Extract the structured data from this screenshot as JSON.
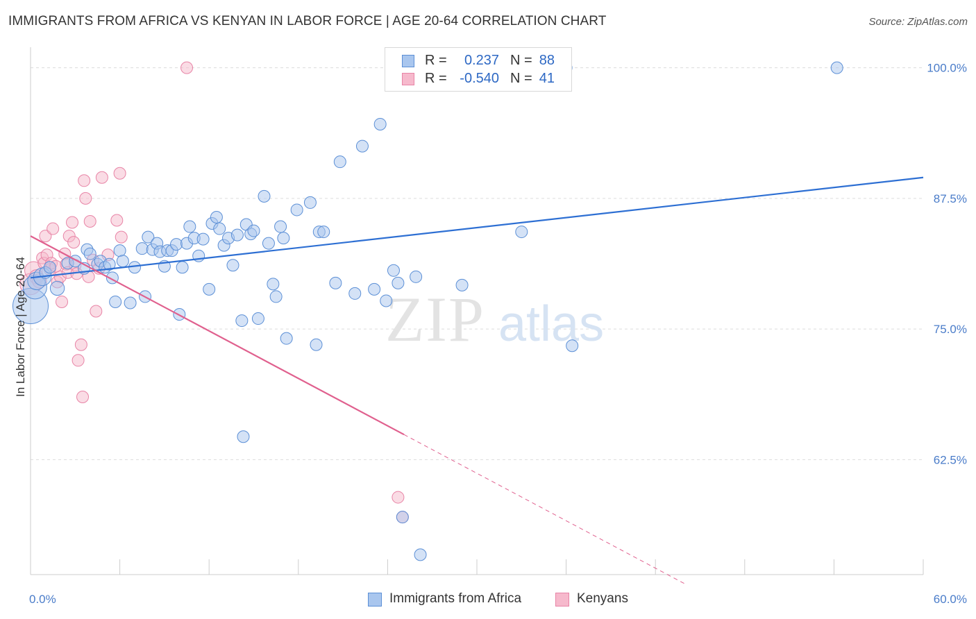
{
  "title": "IMMIGRANTS FROM AFRICA VS KENYAN IN LABOR FORCE | AGE 20-64 CORRELATION CHART",
  "source": "Source: ZipAtlas.com",
  "watermark": {
    "zip": "ZIP",
    "atlas": "atlas"
  },
  "legend": {
    "rows": [
      {
        "r_label": "R =",
        "r_value": "0.237",
        "n_label": "N =",
        "n_value": "88",
        "color": "#a9c6ee",
        "stroke": "#5b8fd6"
      },
      {
        "r_label": "R =",
        "r_value": "-0.540",
        "n_label": "N =",
        "n_value": "41",
        "color": "#f6b9cc",
        "stroke": "#e884a6"
      }
    ]
  },
  "bottom_legend": {
    "africa": "Immigrants from Africa",
    "kenyans": "Kenyans"
  },
  "chart_data": {
    "type": "scatter",
    "title": "IMMIGRANTS FROM AFRICA VS KENYAN IN LABOR FORCE | AGE 20-64 CORRELATION CHART",
    "xlabel": "",
    "ylabel": "In Labor Force | Age 20-64",
    "xlim": [
      0,
      60
    ],
    "ylim": [
      51.5,
      102.5
    ],
    "x_tick_labels": [
      {
        "value": 0,
        "label": "0.0%"
      },
      {
        "value": 60,
        "label": "60.0%"
      }
    ],
    "y_ticks": [
      {
        "value": 100,
        "label": "100.0%"
      },
      {
        "value": 87.5,
        "label": "87.5%"
      },
      {
        "value": 75,
        "label": "75.0%"
      },
      {
        "value": 62.5,
        "label": "62.5%"
      }
    ],
    "grid": true,
    "legend_position": "top-center",
    "series": [
      {
        "name": "Immigrants from Africa",
        "color": "#a9c6ee",
        "stroke": "#5b8fd6",
        "trend": {
          "x": [
            0,
            60
          ],
          "y": [
            79.9,
            89.5
          ],
          "color": "#2d6fd3"
        },
        "points": [
          [
            0.0,
            77.2,
            3
          ],
          [
            0.3,
            79.0,
            2
          ],
          [
            0.4,
            79.6,
            1.5
          ],
          [
            0.8,
            80.0,
            1.5
          ],
          [
            1.0,
            80.4,
            1
          ],
          [
            1.3,
            80.9,
            1
          ],
          [
            1.8,
            78.9,
            1.2
          ],
          [
            2.5,
            81.3,
            1
          ],
          [
            3.0,
            81.5,
            1
          ],
          [
            3.6,
            80.8,
            1
          ],
          [
            3.8,
            82.6,
            1
          ],
          [
            4.0,
            82.2,
            1
          ],
          [
            4.5,
            81.2,
            1
          ],
          [
            4.7,
            81.5,
            1
          ],
          [
            5.0,
            80.9,
            1
          ],
          [
            5.3,
            81.2,
            1
          ],
          [
            5.5,
            79.9,
            1
          ],
          [
            5.7,
            77.6,
            1
          ],
          [
            6.0,
            82.5,
            1
          ],
          [
            6.2,
            81.5,
            1
          ],
          [
            6.7,
            77.5,
            1
          ],
          [
            7.0,
            80.9,
            1
          ],
          [
            7.5,
            82.7,
            1
          ],
          [
            7.7,
            78.1,
            1
          ],
          [
            7.9,
            83.8,
            1
          ],
          [
            8.2,
            82.6,
            1
          ],
          [
            8.5,
            83.2,
            1
          ],
          [
            8.7,
            82.4,
            1
          ],
          [
            9.0,
            81.0,
            1
          ],
          [
            9.2,
            82.5,
            1
          ],
          [
            9.5,
            82.5,
            1
          ],
          [
            9.8,
            83.1,
            1
          ],
          [
            10.0,
            76.4,
            1
          ],
          [
            10.2,
            80.9,
            1
          ],
          [
            10.5,
            83.2,
            1
          ],
          [
            10.7,
            84.8,
            1
          ],
          [
            11.0,
            83.7,
            1
          ],
          [
            11.3,
            82.0,
            1
          ],
          [
            11.6,
            83.6,
            1
          ],
          [
            12.0,
            78.8,
            1
          ],
          [
            12.2,
            85.1,
            1
          ],
          [
            12.5,
            85.7,
            1
          ],
          [
            12.7,
            84.6,
            1
          ],
          [
            13.0,
            83.0,
            1
          ],
          [
            13.3,
            83.7,
            1
          ],
          [
            13.6,
            81.1,
            1
          ],
          [
            13.9,
            84.0,
            1
          ],
          [
            14.2,
            75.8,
            1
          ],
          [
            14.5,
            85.0,
            1
          ],
          [
            14.8,
            84.1,
            1
          ],
          [
            15.0,
            84.4,
            1
          ],
          [
            15.3,
            76.0,
            1
          ],
          [
            15.7,
            87.7,
            1
          ],
          [
            16.0,
            83.2,
            1
          ],
          [
            16.3,
            79.3,
            1
          ],
          [
            16.5,
            78.1,
            1
          ],
          [
            16.8,
            84.8,
            1
          ],
          [
            17.0,
            83.7,
            1
          ],
          [
            17.2,
            74.1,
            1
          ],
          [
            17.9,
            86.4,
            1
          ],
          [
            18.8,
            87.1,
            1
          ],
          [
            19.2,
            73.5,
            1
          ],
          [
            19.4,
            84.3,
            1
          ],
          [
            19.7,
            84.3,
            1
          ],
          [
            20.5,
            79.4,
            1
          ],
          [
            20.8,
            91.0,
            1
          ],
          [
            21.8,
            78.4,
            1
          ],
          [
            22.3,
            92.5,
            1
          ],
          [
            23.1,
            78.8,
            1
          ],
          [
            23.5,
            94.6,
            1
          ],
          [
            23.9,
            77.7,
            1
          ],
          [
            24.4,
            80.6,
            1
          ],
          [
            24.7,
            79.4,
            1
          ],
          [
            25.0,
            57.0,
            1
          ],
          [
            25.9,
            80.0,
            1
          ],
          [
            26.2,
            53.4,
            1
          ],
          [
            29.0,
            79.2,
            1
          ],
          [
            33.0,
            84.3,
            1
          ],
          [
            36.0,
            100.0,
            1
          ],
          [
            36.4,
            73.4,
            1
          ],
          [
            54.2,
            100.0,
            1
          ],
          [
            14.3,
            64.7,
            1
          ]
        ]
      },
      {
        "name": "Kenyans",
        "color": "#f6b9cc",
        "stroke": "#e884a6",
        "trend": {
          "x": [
            0,
            25.1
          ],
          "y": [
            83.9,
            64.9
          ],
          "color": "#e0608e",
          "dashed_to": {
            "x": 44,
            "y": 50.6
          }
        },
        "points": [
          [
            0.0,
            79.3,
            1.8
          ],
          [
            0.2,
            80.6,
            1.5
          ],
          [
            0.4,
            80.0,
            1.2
          ],
          [
            0.6,
            79.6,
            1.2
          ],
          [
            0.8,
            81.8,
            1
          ],
          [
            0.9,
            81.3,
            1
          ],
          [
            1.0,
            83.9,
            1
          ],
          [
            1.1,
            82.1,
            1
          ],
          [
            1.3,
            80.7,
            1
          ],
          [
            1.4,
            81.3,
            1
          ],
          [
            1.5,
            84.6,
            1
          ],
          [
            1.7,
            81.0,
            1
          ],
          [
            1.8,
            79.5,
            1
          ],
          [
            2.0,
            80.0,
            1
          ],
          [
            2.1,
            77.6,
            1
          ],
          [
            2.3,
            82.2,
            1
          ],
          [
            2.4,
            81.2,
            1
          ],
          [
            2.5,
            80.4,
            1
          ],
          [
            2.6,
            83.9,
            1
          ],
          [
            2.8,
            85.2,
            1
          ],
          [
            2.9,
            83.3,
            1
          ],
          [
            3.0,
            81.1,
            1
          ],
          [
            3.1,
            80.3,
            1
          ],
          [
            3.2,
            72.0,
            1
          ],
          [
            3.4,
            73.5,
            1
          ],
          [
            3.5,
            68.5,
            1
          ],
          [
            3.6,
            89.2,
            1
          ],
          [
            3.7,
            87.5,
            1
          ],
          [
            3.9,
            80.0,
            1
          ],
          [
            4.0,
            85.3,
            1
          ],
          [
            4.2,
            81.6,
            1
          ],
          [
            4.4,
            76.7,
            1
          ],
          [
            4.6,
            80.8,
            1
          ],
          [
            4.8,
            89.5,
            1
          ],
          [
            5.2,
            82.1,
            1
          ],
          [
            5.8,
            85.4,
            1
          ],
          [
            6.1,
            83.8,
            1
          ],
          [
            6.0,
            89.9,
            1
          ],
          [
            10.5,
            100.0,
            1
          ],
          [
            24.7,
            58.9,
            1
          ],
          [
            25.0,
            57.0,
            1
          ]
        ]
      }
    ]
  }
}
